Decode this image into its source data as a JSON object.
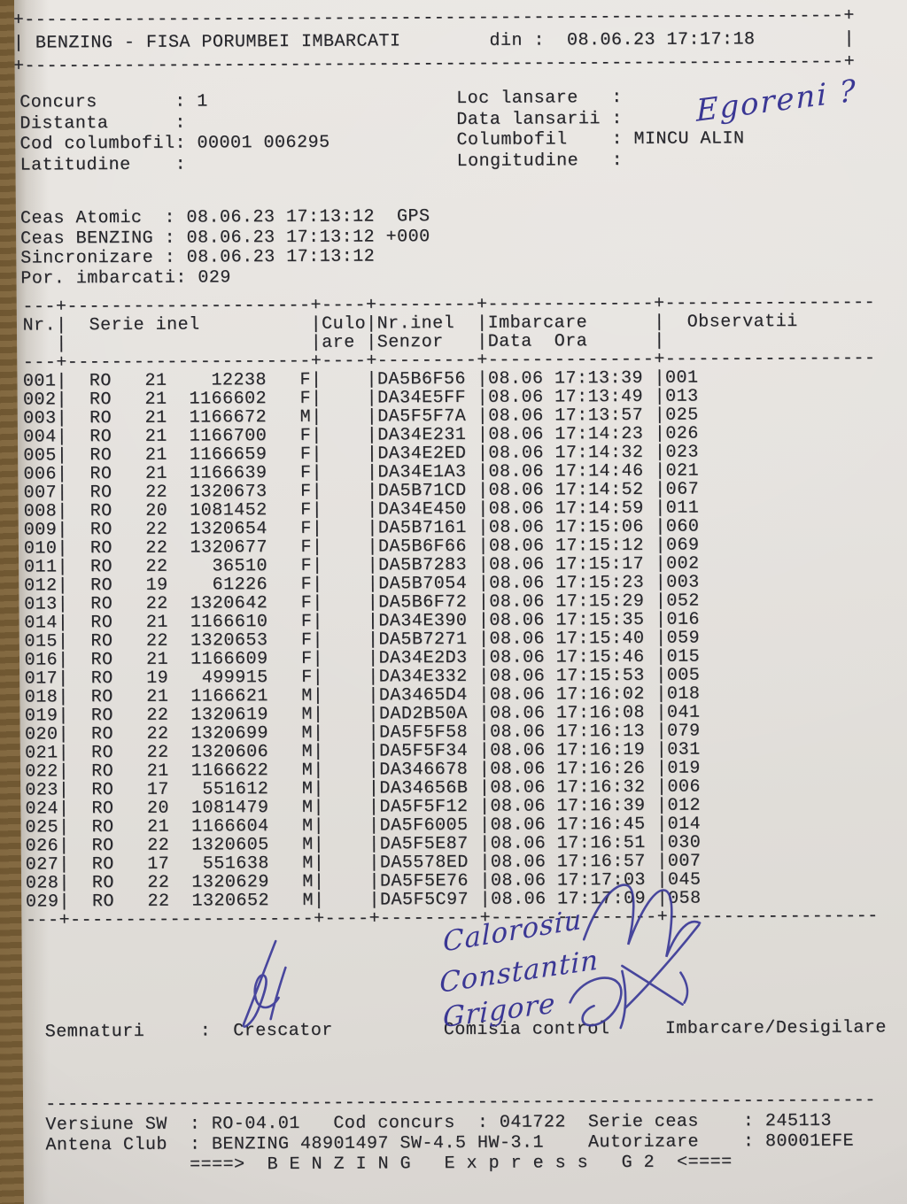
{
  "doc": {
    "header_title_line": "| BENZING - FISA PORUMBEI IMBARCATI        din :  08.06.23 17:17:18        |"
  },
  "info_left": [
    "Concurs       : 1",
    "",
    "Distanta      :",
    "Cod columbofil: 00001 006295",
    "Latitudine    :"
  ],
  "info_right": [
    "Loc lansare   :",
    "",
    "Data lansarii :",
    "Columbofil    : MINCU ALIN",
    "Longitudine   :"
  ],
  "clock_lines": [
    "Ceas Atomic  : 08.06.23 17:13:12  GPS",
    "Ceas BENZING : 08.06.23 17:13:12 +000",
    "Sincronizare : 08.06.23 17:13:12",
    "Por. imbarcati: 029"
  ],
  "table": {
    "headers": {
      "nr": "Nr.",
      "serie": "Serie inel",
      "culo1": "Culo",
      "culo2": "are",
      "senzor1": "Nr.inel",
      "senzor2": "Senzor",
      "imb1": "Imbarcare",
      "imb2": "Data  Ora",
      "obs": "Observatii"
    },
    "rows": [
      [
        "001",
        "RO",
        "21",
        "12238",
        "F",
        "DA5B6F56",
        "08.06",
        "17:13:39",
        "001"
      ],
      [
        "002",
        "RO",
        "21",
        "1166602",
        "F",
        "DA34E5FF",
        "08.06",
        "17:13:49",
        "013"
      ],
      [
        "003",
        "RO",
        "21",
        "1166672",
        "M",
        "DA5F5F7A",
        "08.06",
        "17:13:57",
        "025"
      ],
      [
        "004",
        "RO",
        "21",
        "1166700",
        "F",
        "DA34E231",
        "08.06",
        "17:14:23",
        "026"
      ],
      [
        "005",
        "RO",
        "21",
        "1166659",
        "F",
        "DA34E2ED",
        "08.06",
        "17:14:32",
        "023"
      ],
      [
        "006",
        "RO",
        "21",
        "1166639",
        "F",
        "DA34E1A3",
        "08.06",
        "17:14:46",
        "021"
      ],
      [
        "007",
        "RO",
        "22",
        "1320673",
        "F",
        "DA5B71CD",
        "08.06",
        "17:14:52",
        "067"
      ],
      [
        "008",
        "RO",
        "20",
        "1081452",
        "F",
        "DA34E450",
        "08.06",
        "17:14:59",
        "011"
      ],
      [
        "009",
        "RO",
        "22",
        "1320654",
        "F",
        "DA5B7161",
        "08.06",
        "17:15:06",
        "060"
      ],
      [
        "010",
        "RO",
        "22",
        "1320677",
        "F",
        "DA5B6F66",
        "08.06",
        "17:15:12",
        "069"
      ],
      [
        "011",
        "RO",
        "22",
        "36510",
        "F",
        "DA5B7283",
        "08.06",
        "17:15:17",
        "002"
      ],
      [
        "012",
        "RO",
        "19",
        "61226",
        "F",
        "DA5B7054",
        "08.06",
        "17:15:23",
        "003"
      ],
      [
        "013",
        "RO",
        "22",
        "1320642",
        "F",
        "DA5B6F72",
        "08.06",
        "17:15:29",
        "052"
      ],
      [
        "014",
        "RO",
        "21",
        "1166610",
        "F",
        "DA34E390",
        "08.06",
        "17:15:35",
        "016"
      ],
      [
        "015",
        "RO",
        "22",
        "1320653",
        "F",
        "DA5B7271",
        "08.06",
        "17:15:40",
        "059"
      ],
      [
        "016",
        "RO",
        "21",
        "1166609",
        "F",
        "DA34E2D3",
        "08.06",
        "17:15:46",
        "015"
      ],
      [
        "017",
        "RO",
        "19",
        "499915",
        "F",
        "DA34E332",
        "08.06",
        "17:15:53",
        "005"
      ],
      [
        "018",
        "RO",
        "21",
        "1166621",
        "M",
        "DA3465D4",
        "08.06",
        "17:16:02",
        "018"
      ],
      [
        "019",
        "RO",
        "22",
        "1320619",
        "M",
        "DAD2B50A",
        "08.06",
        "17:16:08",
        "041"
      ],
      [
        "020",
        "RO",
        "22",
        "1320699",
        "M",
        "DA5F5F58",
        "08.06",
        "17:16:13",
        "079"
      ],
      [
        "021",
        "RO",
        "22",
        "1320606",
        "M",
        "DA5F5F34",
        "08.06",
        "17:16:19",
        "031"
      ],
      [
        "022",
        "RO",
        "21",
        "1166622",
        "M",
        "DA346678",
        "08.06",
        "17:16:26",
        "019"
      ],
      [
        "023",
        "RO",
        "17",
        "551612",
        "M",
        "DA34656B",
        "08.06",
        "17:16:32",
        "006"
      ],
      [
        "024",
        "RO",
        "20",
        "1081479",
        "M",
        "DA5F5F12",
        "08.06",
        "17:16:39",
        "012"
      ],
      [
        "025",
        "RO",
        "21",
        "1166604",
        "M",
        "DA5F6005",
        "08.06",
        "17:16:45",
        "014"
      ],
      [
        "026",
        "RO",
        "22",
        "1320605",
        "M",
        "DA5F5E87",
        "08.06",
        "17:16:51",
        "030"
      ],
      [
        "027",
        "RO",
        "17",
        "551638",
        "M",
        "DA5578ED",
        "08.06",
        "17:16:57",
        "007"
      ],
      [
        "028",
        "RO",
        "22",
        "1320629",
        "M",
        "DA5F5E76",
        "08.06",
        "17:17:03",
        "045"
      ],
      [
        "029",
        "RO",
        "22",
        "1320652",
        "M",
        "DA5F5C97",
        "08.06",
        "17:17:09",
        "058"
      ]
    ]
  },
  "semnaturi_line": "Semnaturi     :  Crescator          Comisia control     Imbarcare/Desigilare",
  "footer_lines": [
    "Versiune SW  : RO-04.01   Cod concurs  : 041722  Serie ceas    : 245113",
    "Antena Club  : BENZING 48901497 SW-4.5 HW-3.1    Autorizare    : 80001EFE",
    "             ====>  B E N Z I N G   E x p r e s s   G 2  <===="
  ],
  "handwriting": {
    "loc_lansare": "Egoreni ?",
    "committee": [
      "Calorosiu",
      "Constantin",
      "Grigore"
    ]
  },
  "colors": {
    "ink_print": "#27272c",
    "ink_pen": "#3a3794",
    "paper": "#e4e1dd",
    "desk_wood": "#9c7d4d"
  }
}
